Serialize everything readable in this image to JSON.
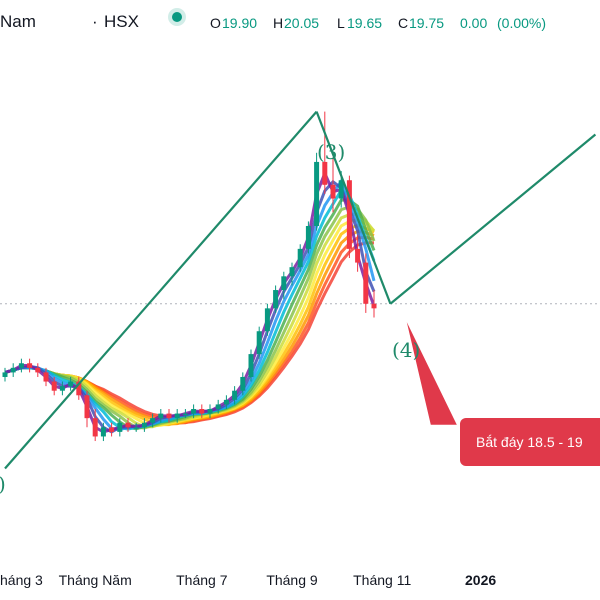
{
  "header": {
    "symbol_name": "Nam",
    "exchange": "HSX",
    "open_label": "O",
    "open": "19.90",
    "high_label": "H",
    "high": "20.05",
    "low_label": "L",
    "low": "19.65",
    "close_label": "C",
    "close": "19.75",
    "change": "0.00",
    "change_pct": "(0.00%)"
  },
  "annotations": {
    "wave3": "(3)",
    "wave4": "(4)",
    "wave_partial": ")",
    "callout": "Bắt đáy 18.5 - 19"
  },
  "x_axis": {
    "ticks": [
      {
        "label": "háng 3",
        "bold": false
      },
      {
        "label": "Tháng Năm",
        "bold": false
      },
      {
        "label": "Tháng 7",
        "bold": false
      },
      {
        "label": "Tháng 9",
        "bold": false
      },
      {
        "label": "Tháng 11",
        "bold": false
      },
      {
        "label": "2026",
        "bold": true
      }
    ]
  },
  "colors": {
    "bull": "#089981",
    "bear": "#f23645",
    "wave": "#1f8a6a",
    "callout": "#e0394a",
    "rainbow": [
      "#7b1fa2",
      "#3f51b5",
      "#2196f3",
      "#00bcd4",
      "#4caf50",
      "#8bc34a",
      "#cddc39",
      "#ffeb3b",
      "#ffc107",
      "#ff9800",
      "#ff5722",
      "#f44336"
    ]
  },
  "chart_data": {
    "type": "candlestick",
    "candles": [
      {
        "o": 19.0,
        "h": 19.2,
        "l": 18.9,
        "c": 19.1
      },
      {
        "o": 19.1,
        "h": 19.3,
        "l": 19.0,
        "c": 19.2
      },
      {
        "o": 19.2,
        "h": 19.4,
        "l": 19.1,
        "c": 19.3
      },
      {
        "o": 19.3,
        "h": 19.4,
        "l": 19.1,
        "c": 19.2
      },
      {
        "o": 19.2,
        "h": 19.3,
        "l": 19.0,
        "c": 19.1
      },
      {
        "o": 19.1,
        "h": 19.2,
        "l": 18.8,
        "c": 18.9
      },
      {
        "o": 18.9,
        "h": 19.0,
        "l": 18.6,
        "c": 18.7
      },
      {
        "o": 18.7,
        "h": 18.9,
        "l": 18.6,
        "c": 18.8
      },
      {
        "o": 18.8,
        "h": 19.0,
        "l": 18.7,
        "c": 18.9
      },
      {
        "o": 18.9,
        "h": 19.0,
        "l": 18.5,
        "c": 18.6
      },
      {
        "o": 18.6,
        "h": 18.7,
        "l": 17.9,
        "c": 18.1
      },
      {
        "o": 18.1,
        "h": 18.3,
        "l": 17.6,
        "c": 17.7
      },
      {
        "o": 17.7,
        "h": 18.0,
        "l": 17.6,
        "c": 17.9
      },
      {
        "o": 17.9,
        "h": 18.0,
        "l": 17.7,
        "c": 17.8
      },
      {
        "o": 17.8,
        "h": 18.1,
        "l": 17.7,
        "c": 18.0
      },
      {
        "o": 18.0,
        "h": 18.1,
        "l": 17.8,
        "c": 17.9
      },
      {
        "o": 17.9,
        "h": 18.0,
        "l": 17.8,
        "c": 17.9
      },
      {
        "o": 17.9,
        "h": 18.1,
        "l": 17.8,
        "c": 18.0
      },
      {
        "o": 18.0,
        "h": 18.2,
        "l": 17.9,
        "c": 18.1
      },
      {
        "o": 18.1,
        "h": 18.3,
        "l": 18.0,
        "c": 18.2
      },
      {
        "o": 18.2,
        "h": 18.3,
        "l": 18.0,
        "c": 18.1
      },
      {
        "o": 18.1,
        "h": 18.3,
        "l": 18.0,
        "c": 18.2
      },
      {
        "o": 18.2,
        "h": 18.3,
        "l": 18.1,
        "c": 18.2
      },
      {
        "o": 18.2,
        "h": 18.4,
        "l": 18.1,
        "c": 18.3
      },
      {
        "o": 18.3,
        "h": 18.4,
        "l": 18.1,
        "c": 18.2
      },
      {
        "o": 18.2,
        "h": 18.4,
        "l": 18.1,
        "c": 18.3
      },
      {
        "o": 18.3,
        "h": 18.5,
        "l": 18.2,
        "c": 18.4
      },
      {
        "o": 18.4,
        "h": 18.6,
        "l": 18.3,
        "c": 18.5
      },
      {
        "o": 18.5,
        "h": 18.8,
        "l": 18.4,
        "c": 18.7
      },
      {
        "o": 18.7,
        "h": 19.1,
        "l": 18.6,
        "c": 19.0
      },
      {
        "o": 19.0,
        "h": 19.6,
        "l": 18.9,
        "c": 19.5
      },
      {
        "o": 19.5,
        "h": 20.1,
        "l": 19.4,
        "c": 20.0
      },
      {
        "o": 20.0,
        "h": 20.6,
        "l": 19.9,
        "c": 20.5
      },
      {
        "o": 20.5,
        "h": 21.0,
        "l": 20.4,
        "c": 20.9
      },
      {
        "o": 20.9,
        "h": 21.3,
        "l": 20.7,
        "c": 21.2
      },
      {
        "o": 21.2,
        "h": 21.5,
        "l": 21.0,
        "c": 21.4
      },
      {
        "o": 21.4,
        "h": 21.9,
        "l": 21.3,
        "c": 21.8
      },
      {
        "o": 21.8,
        "h": 22.4,
        "l": 21.7,
        "c": 22.3
      },
      {
        "o": 22.3,
        "h": 23.9,
        "l": 22.2,
        "c": 23.7
      },
      {
        "o": 23.7,
        "h": 24.8,
        "l": 23.0,
        "c": 23.2
      },
      {
        "o": 23.2,
        "h": 23.8,
        "l": 22.6,
        "c": 22.9
      },
      {
        "o": 22.9,
        "h": 23.5,
        "l": 22.7,
        "c": 23.3
      },
      {
        "o": 23.3,
        "h": 23.4,
        "l": 21.6,
        "c": 21.8
      },
      {
        "o": 21.8,
        "h": 22.1,
        "l": 21.3,
        "c": 21.5
      },
      {
        "o": 21.5,
        "h": 21.7,
        "l": 20.4,
        "c": 20.6
      },
      {
        "o": 20.6,
        "h": 20.9,
        "l": 20.3,
        "c": 20.5
      }
    ],
    "wave_lines": [
      {
        "from": [
          0,
          17.0
        ],
        "to": [
          38,
          24.8
        ]
      },
      {
        "from": [
          38,
          24.8
        ],
        "to": [
          47,
          20.6
        ]
      },
      {
        "from": [
          47,
          20.6
        ],
        "to": [
          72,
          24.3
        ]
      }
    ],
    "callout_pointer": {
      "from": [
        49,
        20.2
      ],
      "to": [
        55,
        18.0
      ]
    },
    "dotted_price": 20.6,
    "x_ticks_index": [
      2,
      11,
      24,
      35,
      46,
      58
    ],
    "ylim": [
      15.0,
      25.6
    ]
  }
}
